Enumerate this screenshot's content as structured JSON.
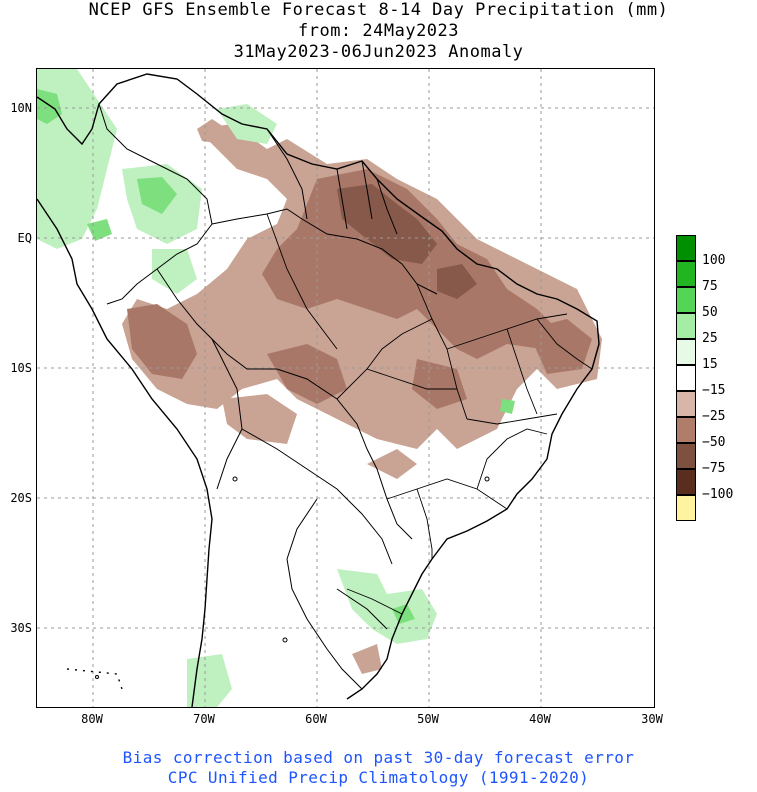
{
  "title": {
    "line1": "NCEP GFS Ensemble Forecast 8-14 Day Precipitation (mm)",
    "line2": "from: 24May2023",
    "line3": "31May2023-06Jun2023 Anomaly"
  },
  "axes": {
    "lat_labels": [
      "10N",
      "EQ",
      "10S",
      "20S",
      "30S"
    ],
    "lon_labels": [
      "80W",
      "70W",
      "60W",
      "50W",
      "40W",
      "30W"
    ]
  },
  "legend": {
    "levels": [
      {
        "label": "100",
        "color": "#008f00"
      },
      {
        "label": "75",
        "color": "#22b522"
      },
      {
        "label": "50",
        "color": "#55d555"
      },
      {
        "label": "25",
        "color": "#a5eda5"
      },
      {
        "label": "15",
        "color": "#e6fae6"
      },
      {
        "label": "−15",
        "color": "#ffffff"
      },
      {
        "label": "−25",
        "color": "#d7b5a8"
      },
      {
        "label": "−50",
        "color": "#b07d6b"
      },
      {
        "label": "−75",
        "color": "#7e5040"
      },
      {
        "label": "−100",
        "color": "#5a2e1e"
      },
      {
        "label": "",
        "color": "#fff3a0"
      }
    ]
  },
  "footer": {
    "line1": "Bias correction based on past 30-day forecast error",
    "line2": "CPC Unified Precip Climatology (1991-2020)"
  }
}
